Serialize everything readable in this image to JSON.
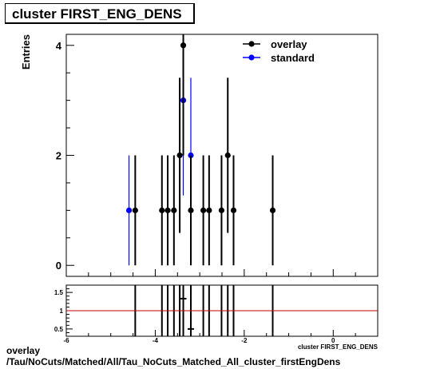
{
  "title": "cluster FIRST_ENG_DENS",
  "footer": {
    "line1": "overlay",
    "line2": "/Tau/NoCuts/Matched/All/Tau_NoCuts_Matched_All_cluster_firstEngDens"
  },
  "chart_data": [
    {
      "type": "scatter",
      "ylabel": "Entries",
      "xlim": [
        -6,
        1
      ],
      "ylim": [
        -0.2,
        4.2
      ],
      "y_tick_labels": [
        "0",
        "2",
        "4"
      ],
      "legend": {
        "placement": "top-right"
      },
      "series": [
        {
          "name": "overlay",
          "color": "#000000",
          "points": [
            {
              "x": -4.45,
              "y": 1,
              "err": 1
            },
            {
              "x": -3.85,
              "y": 1,
              "err": 1
            },
            {
              "x": -3.72,
              "y": 1,
              "err": 1
            },
            {
              "x": -3.58,
              "y": 1,
              "err": 1
            },
            {
              "x": -3.45,
              "y": 2,
              "err": 1.41
            },
            {
              "x": -3.37,
              "y": 4,
              "err": 2
            },
            {
              "x": -3.2,
              "y": 1,
              "err": 1
            },
            {
              "x": -2.92,
              "y": 1,
              "err": 1
            },
            {
              "x": -2.79,
              "y": 1,
              "err": 1
            },
            {
              "x": -2.51,
              "y": 1,
              "err": 1
            },
            {
              "x": -2.37,
              "y": 2,
              "err": 1.41
            },
            {
              "x": -2.24,
              "y": 1,
              "err": 1
            },
            {
              "x": -1.36,
              "y": 1,
              "err": 1
            }
          ]
        },
        {
          "name": "standard",
          "color": "#0000ff",
          "points": [
            {
              "x": -4.59,
              "y": 1,
              "err": 1
            },
            {
              "x": -3.37,
              "y": 3,
              "err": 1.73
            },
            {
              "x": -3.2,
              "y": 2,
              "err": 1.41
            }
          ]
        }
      ]
    },
    {
      "type": "scatter",
      "xlabel": "cluster FIRST_ENG_DENS",
      "xlim": [
        -6,
        1
      ],
      "ylim": [
        0.3,
        1.7
      ],
      "x_tick_labels": [
        "-6",
        "-4",
        "-2",
        "0"
      ],
      "y_tick_labels": [
        "0.5",
        "1",
        "1.5"
      ],
      "reference_line": {
        "y": 1,
        "color": "#c00000"
      },
      "points": [
        {
          "x": -3.37,
          "y": 1.33
        },
        {
          "x": -3.2,
          "y": 0.5
        }
      ]
    }
  ]
}
